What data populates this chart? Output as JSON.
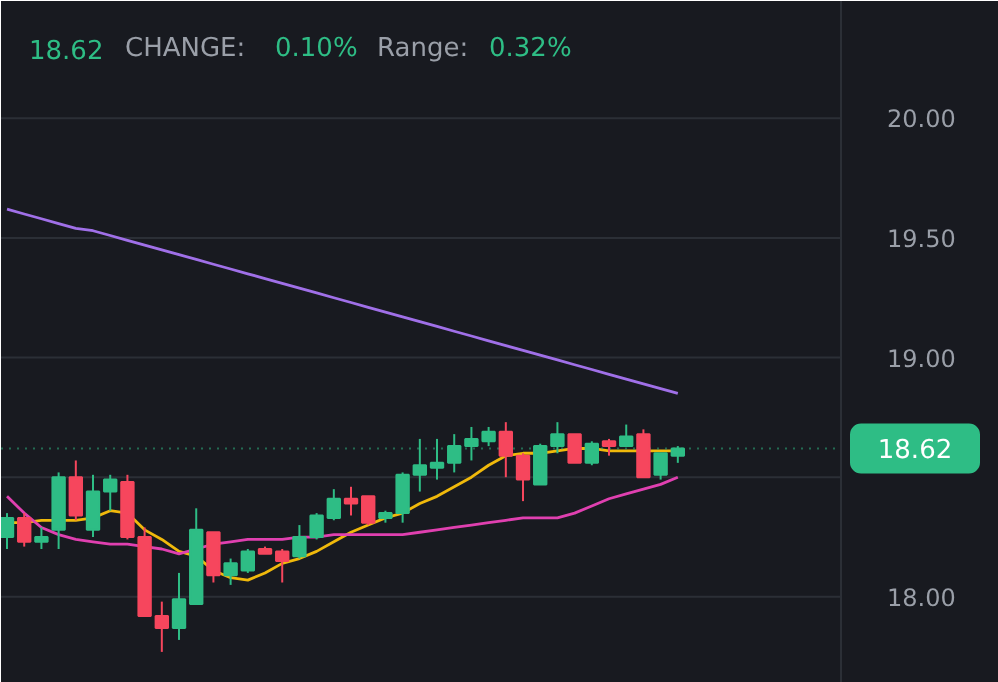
{
  "chart_data": {
    "type": "candlestick",
    "categories": [
      null,
      null,
      null,
      null,
      null,
      null,
      null,
      null,
      null,
      null,
      null,
      null,
      null,
      null,
      null,
      null,
      null,
      null,
      null,
      null,
      null,
      null,
      null,
      null,
      null,
      null,
      null,
      null,
      null,
      null,
      null,
      null,
      null,
      null,
      null,
      null,
      null,
      null,
      null,
      null
    ],
    "ohlc": [
      [
        18.25,
        18.35,
        18.2,
        18.33
      ],
      [
        18.33,
        18.35,
        18.21,
        18.23
      ],
      [
        18.23,
        18.29,
        18.2,
        18.25
      ],
      [
        18.28,
        18.52,
        18.2,
        18.5
      ],
      [
        18.5,
        18.57,
        18.32,
        18.34
      ],
      [
        18.28,
        18.51,
        18.25,
        18.44
      ],
      [
        18.44,
        18.51,
        18.36,
        18.49
      ],
      [
        18.48,
        18.51,
        18.24,
        18.25
      ],
      [
        18.25,
        18.29,
        17.92,
        17.92
      ],
      [
        17.92,
        17.98,
        17.77,
        17.87
      ],
      [
        17.87,
        18.1,
        17.82,
        17.99
      ],
      [
        17.97,
        18.37,
        17.97,
        18.28
      ],
      [
        18.27,
        18.27,
        18.06,
        18.09
      ],
      [
        18.09,
        18.16,
        18.05,
        18.14
      ],
      [
        18.11,
        18.2,
        18.1,
        18.19
      ],
      [
        18.2,
        18.21,
        18.18,
        18.18
      ],
      [
        18.19,
        18.2,
        18.06,
        18.15
      ],
      [
        18.17,
        18.3,
        18.16,
        18.25
      ],
      [
        18.25,
        18.35,
        18.24,
        18.34
      ],
      [
        18.33,
        18.45,
        18.32,
        18.41
      ],
      [
        18.41,
        18.46,
        18.34,
        18.39
      ],
      [
        18.42,
        18.42,
        18.3,
        18.31
      ],
      [
        18.33,
        18.36,
        18.31,
        18.35
      ],
      [
        18.35,
        18.52,
        18.31,
        18.51
      ],
      [
        18.51,
        18.66,
        18.44,
        18.55
      ],
      [
        18.54,
        18.66,
        18.49,
        18.56
      ],
      [
        18.56,
        18.68,
        18.52,
        18.63
      ],
      [
        18.63,
        18.71,
        18.57,
        18.66
      ],
      [
        18.65,
        18.71,
        18.63,
        18.69
      ],
      [
        18.69,
        18.73,
        18.5,
        18.59
      ],
      [
        18.59,
        18.6,
        18.4,
        18.49
      ],
      [
        18.47,
        18.64,
        18.47,
        18.63
      ],
      [
        18.63,
        18.73,
        18.6,
        18.68
      ],
      [
        18.68,
        18.68,
        18.56,
        18.56
      ],
      [
        18.56,
        18.65,
        18.55,
        18.64
      ],
      [
        18.65,
        18.66,
        18.59,
        18.63
      ],
      [
        18.63,
        18.72,
        18.63,
        18.67
      ],
      [
        18.68,
        18.7,
        18.5,
        18.5
      ],
      [
        18.51,
        18.6,
        18.49,
        18.6
      ],
      [
        18.59,
        18.63,
        18.56,
        18.62
      ]
    ],
    "colors": [
      "#2ebd85",
      "#f6465d",
      "#2ebd85",
      "#2ebd85",
      "#f6465d",
      "#2ebd85",
      "#2ebd85",
      "#f6465d",
      "#f6465d",
      "#f6465d",
      "#2ebd85",
      "#2ebd85",
      "#f6465d",
      "#2ebd85",
      "#2ebd85",
      "#f6465d",
      "#f6465d",
      "#2ebd85",
      "#2ebd85",
      "#2ebd85",
      "#f6465d",
      "#f6465d",
      "#2ebd85",
      "#2ebd85",
      "#2ebd85",
      "#2ebd85",
      "#2ebd85",
      "#2ebd85",
      "#2ebd85",
      "#f6465d",
      "#f6465d",
      "#2ebd85",
      "#2ebd85",
      "#f6465d",
      "#2ebd85",
      "#f6465d",
      "#2ebd85",
      "#f6465d",
      "#2ebd85",
      "#2ebd85"
    ],
    "series": [
      {
        "type": "line",
        "color": "#f0b90b",
        "values": [
          18.31,
          18.31,
          18.32,
          18.32,
          18.32,
          18.33,
          18.36,
          18.35,
          18.28,
          18.24,
          18.19,
          18.17,
          18.11,
          18.08,
          18.07,
          18.1,
          18.14,
          18.16,
          18.19,
          18.23,
          18.27,
          18.3,
          18.33,
          18.35,
          18.39,
          18.42,
          18.46,
          18.5,
          18.55,
          18.59,
          18.6,
          18.6,
          18.61,
          18.62,
          18.62,
          18.61,
          18.61,
          18.61,
          18.61,
          18.61
        ]
      },
      {
        "type": "line",
        "color": "#e040b0",
        "values": [
          18.42,
          18.35,
          18.29,
          18.26,
          18.24,
          18.23,
          18.22,
          18.22,
          18.21,
          18.2,
          18.18,
          18.2,
          18.22,
          18.23,
          18.24,
          18.24,
          18.24,
          18.25,
          18.25,
          18.26,
          18.26,
          18.26,
          18.26,
          18.26,
          18.27,
          18.28,
          18.29,
          18.3,
          18.31,
          18.32,
          18.33,
          18.33,
          18.33,
          18.35,
          18.38,
          18.41,
          18.43,
          18.45,
          18.47,
          18.5
        ]
      },
      {
        "type": "line",
        "color": "#a070e8",
        "values": [
          19.62,
          19.6,
          19.58,
          19.56,
          19.54,
          19.53,
          19.51,
          19.49,
          19.47,
          19.45,
          19.43,
          19.41,
          19.39,
          19.37,
          19.35,
          19.33,
          19.31,
          19.29,
          19.27,
          19.25,
          19.23,
          19.21,
          19.19,
          19.17,
          19.15,
          19.13,
          19.11,
          19.09,
          19.07,
          19.05,
          19.03,
          19.01,
          18.99,
          18.97,
          18.95,
          18.93,
          18.91,
          18.89,
          18.87,
          18.85
        ]
      }
    ],
    "ylim": [
      17.64,
      20.49
    ],
    "yticks": [
      {
        "value": 18,
        "label": "18.00"
      },
      {
        "value": 18.5,
        "label": null
      },
      {
        "value": 19,
        "label": "19.00"
      },
      {
        "value": 19.5,
        "label": "19.50"
      },
      {
        "value": 20,
        "label": "20.00"
      }
    ],
    "tick_labels": "y",
    "grid": "y",
    "ref_lines": [
      {
        "axis": "y",
        "value": 18.62,
        "label": "18.62",
        "color": "#2ebd85",
        "line_style": "dotted"
      }
    ],
    "annotations": [
      "18.62",
      "CHANGE:",
      "0.10%",
      "Range:",
      "0.32%"
    ]
  }
}
